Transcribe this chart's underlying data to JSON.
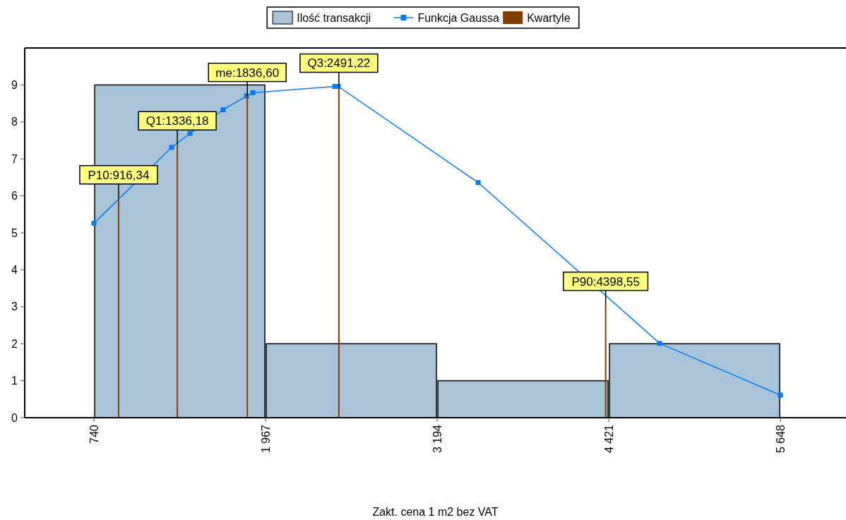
{
  "chart_data": {
    "type": "histogram",
    "xlabel": "Zakt. cena 1 m2 bez VAT",
    "bins": [
      740,
      1967,
      3194,
      4421,
      5648
    ],
    "xlim": [
      245,
      6117
    ],
    "xticks": [
      740,
      {
        "value": 1967,
        "label": "1 967"
      },
      {
        "value": 3194,
        "label": "3 194"
      },
      {
        "value": 4421,
        "label": "4 421"
      },
      {
        "value": 5648,
        "label": "5 648"
      }
    ],
    "ylim": [
      0,
      10
    ],
    "yticks": [
      0,
      1,
      2,
      3,
      4,
      5,
      6,
      7,
      8,
      9
    ],
    "series": [
      {
        "name": "Ilość transakcji",
        "color": "#a9c3d9",
        "values": [
          9,
          2,
          1,
          2
        ]
      },
      {
        "name": "Funkcja Gaussa",
        "type": "line",
        "color": "#0a7cf0",
        "marker": "square",
        "x": [
          740,
          1295,
          1427,
          1664,
          1831,
          1876,
          2462,
          2487,
          3487,
          4785,
          5648
        ],
        "values": [
          5.26,
          7.31,
          7.69,
          8.33,
          8.7,
          8.79,
          8.96,
          8.96,
          6.36,
          2.01,
          0.61
        ]
      },
      {
        "name": "Kwartyle",
        "type": "bar",
        "color": "#7f3f00",
        "x": [
          916.34,
          1336.18,
          1836.6,
          2491.22,
          4398.55
        ],
        "values": [
          5.94,
          7.4,
          8.71,
          8.96,
          3.06
        ]
      }
    ],
    "annotations": [
      {
        "text": "P10:916,34",
        "x": 916.34,
        "y": 5.94
      },
      {
        "text": "Q1:1336,18",
        "x": 1336.18,
        "y": 7.4
      },
      {
        "text": "me:1836,60",
        "x": 1836.6,
        "y": 8.71
      },
      {
        "text": "Q3:2491,22",
        "x": 2491.22,
        "y": 8.96
      },
      {
        "text": "P90:4398,55",
        "x": 4398.55,
        "y": 3.06
      }
    ],
    "legend": "top",
    "grid": false
  }
}
